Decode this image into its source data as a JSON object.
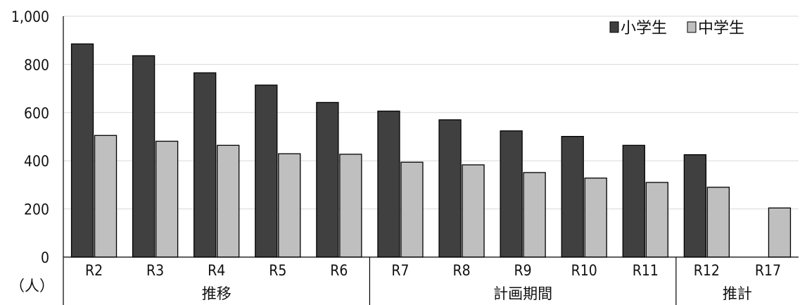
{
  "chart_data": {
    "type": "bar",
    "title": "",
    "xlabel": "",
    "ylabel": "",
    "unit_label": "（人）",
    "ylim": [
      0,
      1000
    ],
    "yticks": [
      {
        "value": 0,
        "label": "0"
      },
      {
        "value": 200,
        "label": "200"
      },
      {
        "value": 400,
        "label": "400"
      },
      {
        "value": 600,
        "label": "600"
      },
      {
        "value": 800,
        "label": "800"
      },
      {
        "value": 1000,
        "label": "1,000"
      }
    ],
    "grid": true,
    "legend_position": "top-right",
    "categories": [
      "R2",
      "R3",
      "R4",
      "R5",
      "R6",
      "R7",
      "R8",
      "R9",
      "R10",
      "R11",
      "R12",
      "R17"
    ],
    "groups": [
      {
        "label": "推移",
        "span": 5
      },
      {
        "label": "計画期間",
        "span": 5
      },
      {
        "label": "推計",
        "span": 2
      }
    ],
    "series": [
      {
        "name": "小学生",
        "color": "#404040",
        "values": [
          885,
          836,
          765,
          714,
          642,
          606,
          570,
          524,
          501,
          464,
          425,
          null
        ]
      },
      {
        "name": "中学生",
        "color": "#bfbfbf",
        "values": [
          505,
          481,
          464,
          429,
          427,
          394,
          383,
          351,
          328,
          310,
          290,
          204
        ]
      }
    ]
  }
}
